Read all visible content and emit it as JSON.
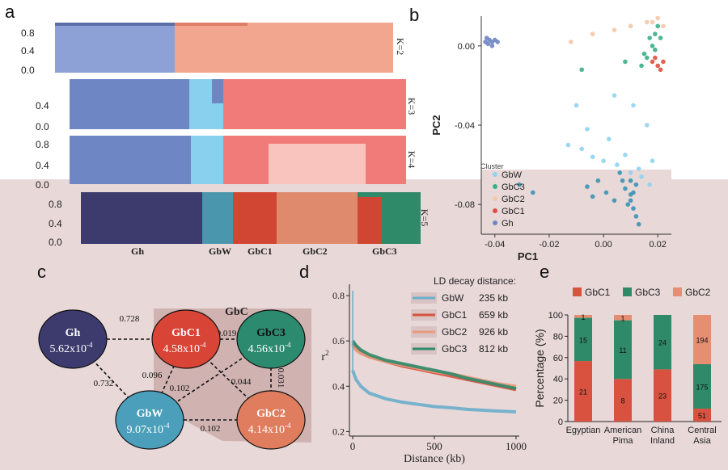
{
  "panels": {
    "a": "a",
    "b": "b",
    "c": "c",
    "d": "d",
    "e": "e"
  },
  "colors": {
    "Gh": "#6f86c4",
    "GbW": "#5aa4c3",
    "GbC1": "#d9523f",
    "GbC2": "#e58e72",
    "GbC3": "#2f8a6a",
    "GhDark": "#3d3a6e",
    "K2_orange": "#f2a68f",
    "K3_light": "#89d0ee",
    "K3_red": "#f07b78",
    "K4_pink": "#f9c4bd",
    "K5_teal": "#4a97ad"
  },
  "panel_a": {
    "k_labels": [
      "K=2",
      "K=3",
      "K=4",
      "K=5"
    ],
    "yticks": [
      "0.8",
      "0.4",
      "0.0"
    ],
    "yticks_k3": [
      "0.8",
      "0.4",
      "0.0"
    ],
    "yticks_k4": [
      "0.8",
      "0.4",
      "0.0"
    ],
    "yticks_k5": [
      "0.8",
      "0.4",
      "0.0"
    ],
    "group_labels": [
      "Gh",
      "GbW",
      "GbC1",
      "GbC2",
      "GbC3"
    ]
  },
  "chart_data": [
    {
      "type": "scatter",
      "panel": "b",
      "xlabel": "PC1",
      "ylabel": "PC2",
      "xticks": [
        "-0.04",
        "-0.02",
        "0.00",
        "0.02"
      ],
      "yticks": [
        "0.00",
        "-0.04",
        "-0.08"
      ],
      "xlim": [
        -0.045,
        0.025
      ],
      "ylim": [
        -0.095,
        0.015
      ],
      "legend_title": "Cluster",
      "legend": [
        "GbW",
        "GbC3",
        "GbC2",
        "GbC1",
        "Gh"
      ],
      "series": [
        {
          "name": "Gh",
          "points": [
            [
              -0.043,
              0.004
            ],
            [
              -0.042,
              0.003
            ],
            [
              -0.041,
              0.002
            ],
            [
              -0.0425,
              0.001
            ],
            [
              -0.04,
              0.003
            ],
            [
              -0.039,
              0.002
            ],
            [
              -0.041,
              0.0
            ],
            [
              -0.0435,
              0.002
            ]
          ]
        },
        {
          "name": "GbW",
          "points": [
            [
              -0.013,
              -0.05
            ],
            [
              -0.008,
              -0.052
            ],
            [
              -0.004,
              -0.056
            ],
            [
              0.0,
              -0.058
            ],
            [
              0.005,
              -0.06
            ],
            [
              0.01,
              -0.064
            ],
            [
              0.014,
              -0.066
            ],
            [
              0.017,
              -0.07
            ],
            [
              -0.006,
              -0.042
            ],
            [
              0.002,
              -0.047
            ],
            [
              0.008,
              -0.055
            ],
            [
              0.013,
              -0.062
            ],
            [
              0.018,
              -0.058
            ],
            [
              0.011,
              -0.03
            ],
            [
              0.016,
              -0.04
            ],
            [
              -0.01,
              -0.03
            ],
            [
              0.004,
              -0.025
            ]
          ]
        },
        {
          "name": "GbC3",
          "points": [
            [
              0.014,
              -0.01
            ],
            [
              0.016,
              -0.006
            ],
            [
              0.018,
              0.0
            ],
            [
              0.019,
              0.006
            ],
            [
              0.02,
              0.01
            ],
            [
              0.017,
              0.004
            ],
            [
              0.015,
              -0.004
            ],
            [
              0.019,
              -0.002
            ],
            [
              0.021,
              0.004
            ],
            [
              -0.008,
              -0.012
            ],
            [
              0.008,
              -0.008
            ]
          ]
        },
        {
          "name": "GbC2",
          "points": [
            [
              -0.012,
              0.002
            ],
            [
              -0.004,
              0.006
            ],
            [
              0.004,
              0.008
            ],
            [
              0.01,
              0.01
            ],
            [
              0.016,
              0.012
            ],
            [
              0.02,
              0.014
            ],
            [
              0.018,
              0.012
            ],
            [
              0.022,
              0.01
            ]
          ]
        },
        {
          "name": "GbC1",
          "points": [
            [
              0.018,
              -0.008
            ],
            [
              0.02,
              -0.01
            ],
            [
              0.022,
              -0.008
            ],
            [
              0.019,
              -0.006
            ],
            [
              0.021,
              -0.012
            ]
          ]
        },
        {
          "name": "GbW_dark",
          "points": [
            [
              0.008,
              -0.072
            ],
            [
              0.01,
              -0.078
            ],
            [
              0.011,
              -0.082
            ],
            [
              0.012,
              -0.086
            ],
            [
              0.009,
              -0.08
            ],
            [
              0.013,
              -0.09
            ],
            [
              0.01,
              -0.075
            ],
            [
              0.007,
              -0.068
            ],
            [
              0.012,
              -0.07
            ],
            [
              0.006,
              -0.064
            ],
            [
              -0.002,
              -0.068
            ],
            [
              -0.006,
              -0.071
            ],
            [
              0.001,
              -0.074
            ],
            [
              -0.004,
              -0.076
            ],
            [
              0.004,
              -0.078
            ],
            [
              0.01,
              -0.068
            ],
            [
              0.011,
              -0.074
            ],
            [
              -0.026,
              -0.074
            ],
            [
              -0.031,
              -0.07
            ]
          ]
        }
      ]
    },
    {
      "type": "diagram",
      "panel": "c",
      "group_label": "GbC",
      "nodes": [
        {
          "name": "Gh",
          "value": "5.62x10",
          "exp": "-4"
        },
        {
          "name": "GbC1",
          "value": "4.58x10",
          "exp": "-4"
        },
        {
          "name": "GbC3",
          "value": "4.56x10",
          "exp": "-4"
        },
        {
          "name": "GbW",
          "value": "9.07x10",
          "exp": "-4"
        },
        {
          "name": "GbC2",
          "value": "4.14x10",
          "exp": "-4"
        }
      ],
      "edges": [
        {
          "from": "Gh",
          "to": "GbC1",
          "label": "0.728"
        },
        {
          "from": "Gh",
          "to": "GbW",
          "label": "0.732"
        },
        {
          "from": "GbC1",
          "to": "GbC3",
          "label": "0.019"
        },
        {
          "from": "GbW",
          "to": "GbC1",
          "label": "0.096"
        },
        {
          "from": "GbW",
          "to": "GbC3",
          "label": "0.102"
        },
        {
          "from": "GbC1",
          "to": "GbC2",
          "label": "0.044"
        },
        {
          "from": "GbC3",
          "to": "GbC2",
          "label": "0.031"
        },
        {
          "from": "GbW",
          "to": "GbC2",
          "label": "0.102"
        }
      ]
    },
    {
      "type": "line",
      "panel": "d",
      "xlabel": "Distance (kb)",
      "ylabel": "r2",
      "xticks": [
        "0",
        "500",
        "1000"
      ],
      "yticks": [
        "0.8",
        "0.6",
        "0.4",
        "0.2"
      ],
      "xlim": [
        -20,
        1020
      ],
      "ylim": [
        0.18,
        0.85
      ],
      "legend_title": "LD decay distance:",
      "series": [
        {
          "name": "GbW",
          "decay": "235 kb",
          "x": [
            0,
            20,
            50,
            100,
            200,
            300,
            400,
            500,
            600,
            700,
            800,
            900,
            1000
          ],
          "y": [
            0.47,
            0.43,
            0.4,
            0.37,
            0.345,
            0.33,
            0.32,
            0.31,
            0.305,
            0.298,
            0.294,
            0.29,
            0.287
          ]
        },
        {
          "name": "GbC1",
          "decay": "659 kb",
          "x": [
            0,
            20,
            50,
            100,
            200,
            300,
            400,
            500,
            600,
            700,
            800,
            900,
            1000
          ],
          "y": [
            0.59,
            0.57,
            0.55,
            0.53,
            0.51,
            0.49,
            0.475,
            0.46,
            0.445,
            0.43,
            0.415,
            0.4,
            0.385
          ]
        },
        {
          "name": "GbC2",
          "decay": "926 kb",
          "x": [
            0,
            20,
            50,
            100,
            200,
            300,
            400,
            500,
            600,
            700,
            800,
            900,
            1000
          ],
          "y": [
            0.58,
            0.56,
            0.545,
            0.53,
            0.51,
            0.495,
            0.48,
            0.465,
            0.455,
            0.44,
            0.425,
            0.41,
            0.4
          ]
        },
        {
          "name": "GbC3",
          "decay": "812 kb",
          "x": [
            0,
            20,
            50,
            100,
            200,
            300,
            400,
            500,
            600,
            700,
            800,
            900,
            1000
          ],
          "y": [
            0.6,
            0.58,
            0.56,
            0.54,
            0.515,
            0.5,
            0.485,
            0.47,
            0.455,
            0.435,
            0.42,
            0.405,
            0.39
          ]
        }
      ]
    },
    {
      "type": "bar",
      "panel": "e",
      "ylabel": "Percentage (%)",
      "yticks": [
        "100",
        "80",
        "60",
        "40",
        "20",
        "0"
      ],
      "ylim": [
        0,
        100
      ],
      "categories": [
        [
          "Egyptian",
          ""
        ],
        [
          "American",
          "Pima"
        ],
        [
          "China",
          "Inland"
        ],
        [
          "Central",
          "Asia"
        ]
      ],
      "series": [
        {
          "name": "GbC1",
          "percent": [
            56.76,
            40.0,
            48.94,
            12.14
          ],
          "labels": [
            "21",
            "8",
            "23",
            "51"
          ]
        },
        {
          "name": "GbC3",
          "percent": [
            40.54,
            55.0,
            51.06,
            41.67
          ],
          "labels": [
            "15",
            "11",
            "24",
            "175"
          ]
        },
        {
          "name": "GbC2",
          "percent": [
            2.7,
            5.0,
            0.0,
            46.19
          ],
          "labels": [
            "1",
            "1",
            "",
            "194"
          ]
        }
      ]
    }
  ]
}
